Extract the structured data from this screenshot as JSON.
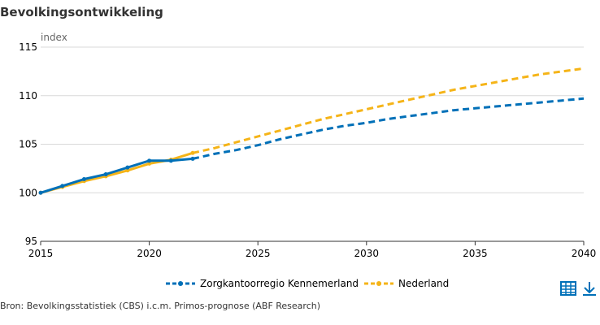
{
  "title": "Bevolkingsontwikkeling",
  "source": "Bron: Bevolkingsstatistiek (CBS) i.c.m. Primos-prognose (ABF Research)",
  "icons": {
    "table": "table-icon",
    "download": "download-icon"
  },
  "colors": {
    "kennemerland": "#0070b8",
    "nederland": "#f5b418",
    "grid": "#d9d9d9"
  },
  "chart_data": {
    "type": "line",
    "ylabel": "index",
    "xlim": [
      2015,
      2040
    ],
    "ylim": [
      95,
      115
    ],
    "xticks": [
      2015,
      2020,
      2025,
      2030,
      2035,
      2040
    ],
    "yticks": [
      95,
      100,
      105,
      110,
      115
    ],
    "grid": true,
    "legend_position": "bottom",
    "observed_until": 2022,
    "series": [
      {
        "name": "Zorgkantoorregio Kennemerland",
        "color": "#0070b8",
        "x": [
          2015,
          2016,
          2017,
          2018,
          2019,
          2020,
          2021,
          2022,
          2023,
          2024,
          2025,
          2026,
          2027,
          2028,
          2029,
          2030,
          2031,
          2032,
          2033,
          2034,
          2035,
          2036,
          2037,
          2038,
          2039,
          2040
        ],
        "y": [
          100.0,
          100.7,
          101.4,
          101.9,
          102.6,
          103.3,
          103.3,
          103.5,
          104.0,
          104.4,
          104.9,
          105.5,
          106.0,
          106.5,
          106.9,
          107.2,
          107.6,
          107.9,
          108.2,
          108.5,
          108.7,
          108.9,
          109.1,
          109.3,
          109.5,
          109.7
        ]
      },
      {
        "name": "Nederland",
        "color": "#f5b418",
        "x": [
          2015,
          2016,
          2017,
          2018,
          2019,
          2020,
          2021,
          2022,
          2023,
          2024,
          2025,
          2026,
          2027,
          2028,
          2029,
          2030,
          2031,
          2032,
          2033,
          2034,
          2035,
          2036,
          2037,
          2038,
          2039,
          2040
        ],
        "y": [
          100.0,
          100.6,
          101.2,
          101.7,
          102.3,
          103.0,
          103.4,
          104.1,
          104.6,
          105.2,
          105.8,
          106.4,
          107.0,
          107.6,
          108.1,
          108.6,
          109.1,
          109.6,
          110.1,
          110.6,
          111.0,
          111.4,
          111.8,
          112.2,
          112.5,
          112.8
        ]
      }
    ]
  }
}
